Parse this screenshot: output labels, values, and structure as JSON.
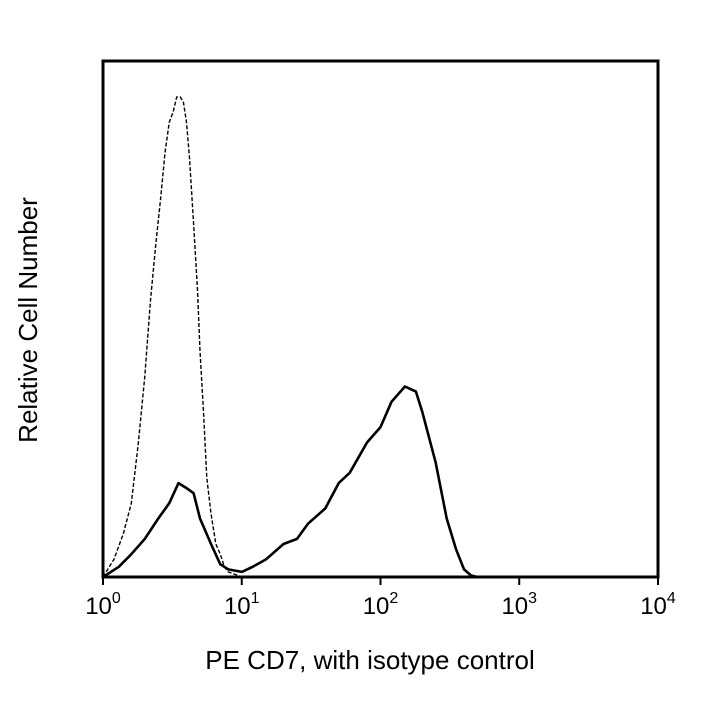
{
  "chart_data": {
    "type": "line",
    "title": "",
    "xlabel": "PE CD7, with isotype control",
    "ylabel": "Relative Cell Number",
    "xscale": "log",
    "xlim": [
      1,
      10000
    ],
    "ylim": [
      0,
      1
    ],
    "grid": false,
    "x_ticks": [
      {
        "value": 1,
        "base": "10",
        "exp": "0"
      },
      {
        "value": 10,
        "base": "10",
        "exp": "1"
      },
      {
        "value": 100,
        "base": "10",
        "exp": "2"
      },
      {
        "value": 1000,
        "base": "10",
        "exp": "3"
      },
      {
        "value": 10000,
        "base": "10",
        "exp": "4"
      }
    ],
    "series": [
      {
        "line_style": "dashed",
        "color": "#000000",
        "x": [
          1.0,
          1.2,
          1.4,
          1.6,
          1.8,
          2.0,
          2.2,
          2.4,
          2.6,
          2.8,
          3.0,
          3.2,
          3.4,
          3.6,
          3.8,
          4.0,
          4.2,
          4.5,
          4.8,
          5.0,
          5.3,
          5.6,
          6.0,
          6.5,
          7.0,
          7.5,
          8.0,
          9.0,
          10.0
        ],
        "y": [
          0.0,
          0.04,
          0.08,
          0.15,
          0.26,
          0.4,
          0.54,
          0.66,
          0.74,
          0.84,
          0.89,
          0.92,
          0.94,
          0.95,
          0.93,
          0.9,
          0.82,
          0.7,
          0.56,
          0.45,
          0.32,
          0.2,
          0.12,
          0.07,
          0.04,
          0.02,
          0.01,
          0.005,
          0.0
        ]
      },
      {
        "line_style": "solid",
        "color": "#000000",
        "x": [
          1.0,
          1.3,
          1.6,
          2.0,
          2.5,
          3.0,
          3.5,
          4.0,
          4.5,
          5.0,
          6.0,
          7.0,
          8.0,
          10.0,
          12.0,
          15.0,
          20.0,
          25.0,
          30.0,
          40.0,
          50.0,
          60.0,
          80.0,
          100.0,
          120.0,
          150.0,
          180.0,
          200.0,
          250.0,
          300.0,
          350.0,
          400.0,
          450.0,
          500.0
        ],
        "y": [
          0.0,
          0.02,
          0.04,
          0.08,
          0.11,
          0.15,
          0.18,
          0.18,
          0.16,
          0.12,
          0.06,
          0.03,
          0.015,
          0.01,
          0.02,
          0.04,
          0.06,
          0.08,
          0.1,
          0.14,
          0.18,
          0.21,
          0.26,
          0.3,
          0.34,
          0.38,
          0.36,
          0.33,
          0.22,
          0.12,
          0.05,
          0.015,
          0.003,
          0.0
        ]
      }
    ]
  }
}
